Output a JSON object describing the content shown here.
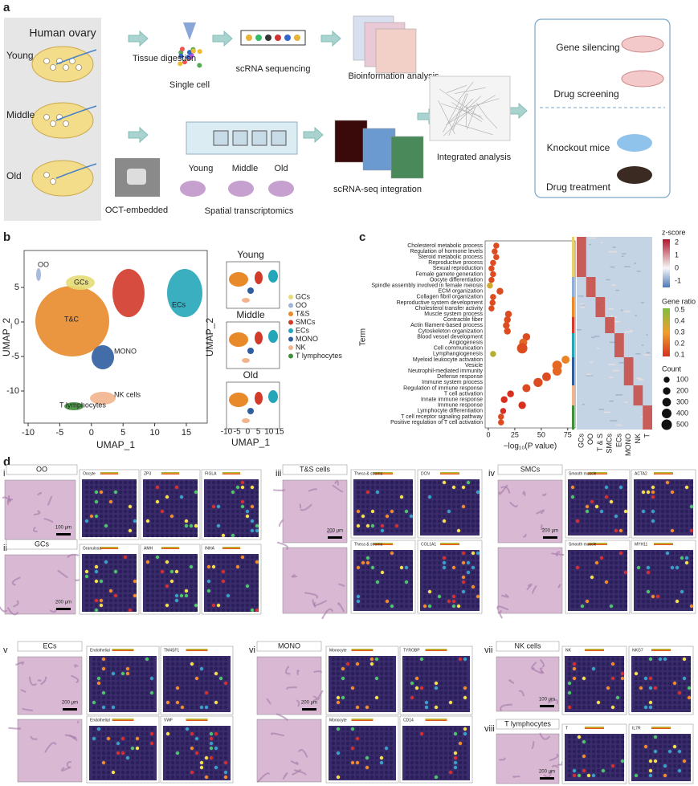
{
  "panel_a": {
    "label": "a",
    "title": "Human ovary",
    "ages": [
      "Young",
      "Middle",
      "Old"
    ],
    "steps": [
      "Tissue digestion",
      "Single cell",
      "scRNA sequencing",
      "Bioinformation analysis",
      "OCT-embedded",
      "Spatial transcriptomics",
      "scRNA-seq integration",
      "Integrated analysis"
    ],
    "slide_labels": [
      "Young",
      "Middle",
      "Old"
    ],
    "applications": [
      "Gene silencing",
      "Drug screening",
      "Knockout mice",
      "Drug treatment"
    ]
  },
  "panel_b": {
    "label": "b",
    "main": {
      "x_label": "UMAP_1",
      "y_label": "UMAP_2",
      "xticks": [
        -10,
        -5,
        0,
        5,
        10,
        15
      ],
      "yticks": [
        -10,
        -5,
        0,
        5
      ],
      "clusters": [
        "OO",
        "GCs",
        "T&C",
        "ECs",
        "MONO",
        "NK cells",
        "T lymphocytes"
      ]
    },
    "legend": [
      "GCs",
      "OO",
      "T&S",
      "SMCs",
      "ECs",
      "MONO",
      "NK",
      "T lymphocytes"
    ],
    "legend_colors": [
      "#e6dc78",
      "#9fb4d8",
      "#e8892a",
      "#d23a2a",
      "#25a6b8",
      "#2f5d9e",
      "#f2b48c",
      "#3f8f3a"
    ],
    "small": {
      "titles": [
        "Young",
        "Middle",
        "Old"
      ],
      "x_label": "UMAP_1",
      "y_label": "UMAP_2",
      "xticks": [
        -10,
        -5,
        0,
        5,
        10,
        15
      ]
    }
  },
  "panel_c": {
    "label": "c",
    "y_label": "Term",
    "x_label": "−log₁₀(P value)",
    "xlim": [
      -3,
      82
    ],
    "xticks": [
      0,
      25,
      50,
      75
    ],
    "terms": [
      "Cholesterol metabolic process",
      "Regulation of hormone levels",
      "Steroid metabolic process",
      "Reproductive process",
      "Sexual reproduction",
      "Female gamete generation",
      "Oocyte differentiation",
      "Spindle assembly involved in female meiosis",
      "ECM organization",
      "Collagen fibril organization",
      "Reproductive system development",
      "Cholesterol transfer activity",
      "Muscle system process",
      "Contractile fiber",
      "Actin filament-based process",
      "Cytoskeleton organization",
      "Blood vessel development",
      "Angiogenesis",
      "Cell communication",
      "Lymphangiogenesis",
      "Myeloid leukocyte activation",
      "Vesicle",
      "Neutrophil-mediated immunity",
      "Defense response",
      "Immune system process",
      "Regulation of immune response",
      "T cell activation",
      "Innate immune response",
      "Immune response",
      "Lymphocyte differentiation",
      "T cell receptor signaling pathway",
      "Positive regulation of T cell activation"
    ],
    "neg_log10_p": [
      7.5,
      6,
      7.5,
      4.5,
      3,
      4.5,
      3,
      1.5,
      11,
      4.5,
      4,
      3,
      19,
      18,
      17,
      18,
      36,
      33,
      32,
      4.5,
      73,
      65,
      65,
      55,
      47,
      36,
      21,
      15,
      32,
      14,
      12,
      12
    ],
    "gene_ratio": [
      0.15,
      0.15,
      0.15,
      0.15,
      0.15,
      0.15,
      0.15,
      0.35,
      0.15,
      0.15,
      0.15,
      0.15,
      0.15,
      0.15,
      0.15,
      0.15,
      0.15,
      0.2,
      0.15,
      0.4,
      0.25,
      0.2,
      0.2,
      0.15,
      0.15,
      0.15,
      0.1,
      0.1,
      0.1,
      0.1,
      0.15,
      0.15
    ],
    "count": [
      100,
      100,
      100,
      100,
      100,
      100,
      100,
      100,
      150,
      100,
      100,
      100,
      150,
      150,
      150,
      150,
      200,
      250,
      500,
      100,
      250,
      400,
      350,
      300,
      350,
      250,
      150,
      150,
      200,
      100,
      100,
      100
    ],
    "heatmap_columns": [
      "GCs",
      "OO",
      "T & S",
      "SMCs",
      "ECs",
      "MONO",
      "NK",
      "T"
    ],
    "zscore_title": "z-score",
    "zscore_ticks": [
      2,
      1,
      0,
      -1
    ],
    "gene_ratio_title": "Gene ratio",
    "gene_ratio_ticks": [
      0.5,
      0.4,
      0.3,
      0.2,
      0.1
    ],
    "count_title": "Count",
    "count_ticks": [
      100,
      200,
      300,
      400,
      500
    ]
  },
  "panel_d": {
    "label": "d",
    "subpanels": [
      {
        "numeral": "i",
        "title": "OO",
        "maps": [
          "Oocyte",
          "ZP3",
          "FIGLA"
        ],
        "scale_bar": "100 μm"
      },
      {
        "numeral": "ii",
        "title": "GCs",
        "maps": [
          "Granulosa",
          "AMH",
          "INHA"
        ],
        "scale_bar": "200 μm"
      },
      {
        "numeral": "iii",
        "title": "T&S cells",
        "maps": [
          "Theca & stroma",
          "DCN",
          "Theca & stroma",
          "COL1A1"
        ],
        "scale_bar": "200 μm"
      },
      {
        "numeral": "iv",
        "title": "SMCs",
        "maps": [
          "Smooth muscle",
          "ACTA2",
          "Smooth muscle",
          "MYH11"
        ],
        "scale_bar": "200 μm"
      },
      {
        "numeral": "v",
        "title": "ECs",
        "maps": [
          "Endothelial",
          "TM4SF1",
          "Endothelial",
          "VWF"
        ],
        "scale_bar": "200 μm"
      },
      {
        "numeral": "vi",
        "title": "MONO",
        "maps": [
          "Monocyte",
          "TYROBP",
          "Monocyte",
          "CD14"
        ],
        "scale_bar": "200 μm"
      },
      {
        "numeral": "vii",
        "title": "NK cells",
        "maps": [
          "NK",
          "NKG7"
        ],
        "scale_bar": "100 μm"
      },
      {
        "numeral": "viii",
        "title": "T lymphocytes",
        "maps": [
          "T",
          "IL7R"
        ],
        "scale_bar": "200 μm"
      }
    ]
  }
}
